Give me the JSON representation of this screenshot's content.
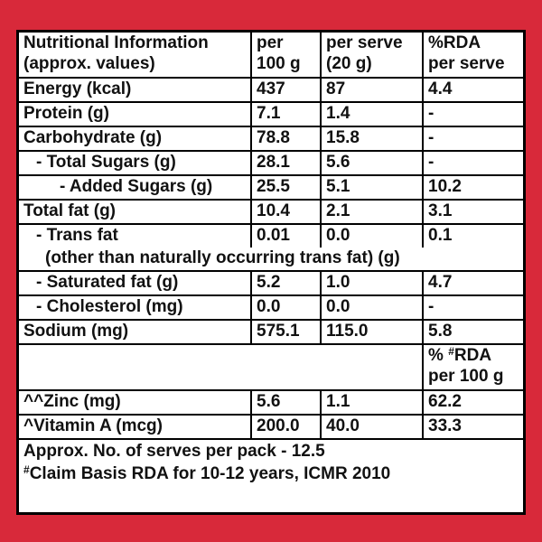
{
  "header": [
    [
      "Nutritional Information",
      "(approx. values)"
    ],
    [
      "per",
      "100 g"
    ],
    [
      "per serve",
      "(20 g)"
    ],
    [
      "%RDA",
      "per serve"
    ]
  ],
  "rows": [
    [
      "Energy (kcal)",
      "437",
      "87",
      "4.4"
    ],
    [
      "Protein (g)",
      "7.1",
      "1.4",
      "-"
    ],
    [
      "Carbohydrate (g)",
      "78.8",
      "15.8",
      "-"
    ],
    [
      "- Total Sugars (g)",
      "28.1",
      "5.6",
      "-"
    ],
    [
      "- Added Sugars (g)",
      "25.5",
      "5.1",
      "10.2"
    ],
    [
      "Total fat (g)",
      "10.4",
      "2.1",
      "3.1"
    ],
    [
      "- Trans fat",
      "0.01",
      "0.0",
      "0.1"
    ]
  ],
  "note": "(other than naturally occurring trans fat) (g)",
  "rows2": [
    [
      "- Saturated fat (g)",
      "5.2",
      "1.0",
      "4.7"
    ],
    [
      "- Cholesterol (mg)",
      "0.0",
      "0.0",
      "-"
    ],
    [
      "Sodium (mg)",
      "575.1",
      "115.0",
      "5.8"
    ]
  ],
  "rda_header": {
    "prefix": "% ",
    "sup": "#",
    "suffix": "RDA",
    "line2": "per 100 g"
  },
  "micro_rows": [
    [
      "^^Zinc (mg)",
      "5.6",
      "1.1",
      "62.2"
    ],
    [
      "^Vitamin A (mcg)",
      "200.0",
      "40.0",
      "33.3"
    ]
  ],
  "footer": {
    "line1": "Approx. No. of serves per pack - 12.5",
    "sup": "#",
    "line2": "Claim Basis RDA for 10-12 years, ICMR 2010"
  }
}
